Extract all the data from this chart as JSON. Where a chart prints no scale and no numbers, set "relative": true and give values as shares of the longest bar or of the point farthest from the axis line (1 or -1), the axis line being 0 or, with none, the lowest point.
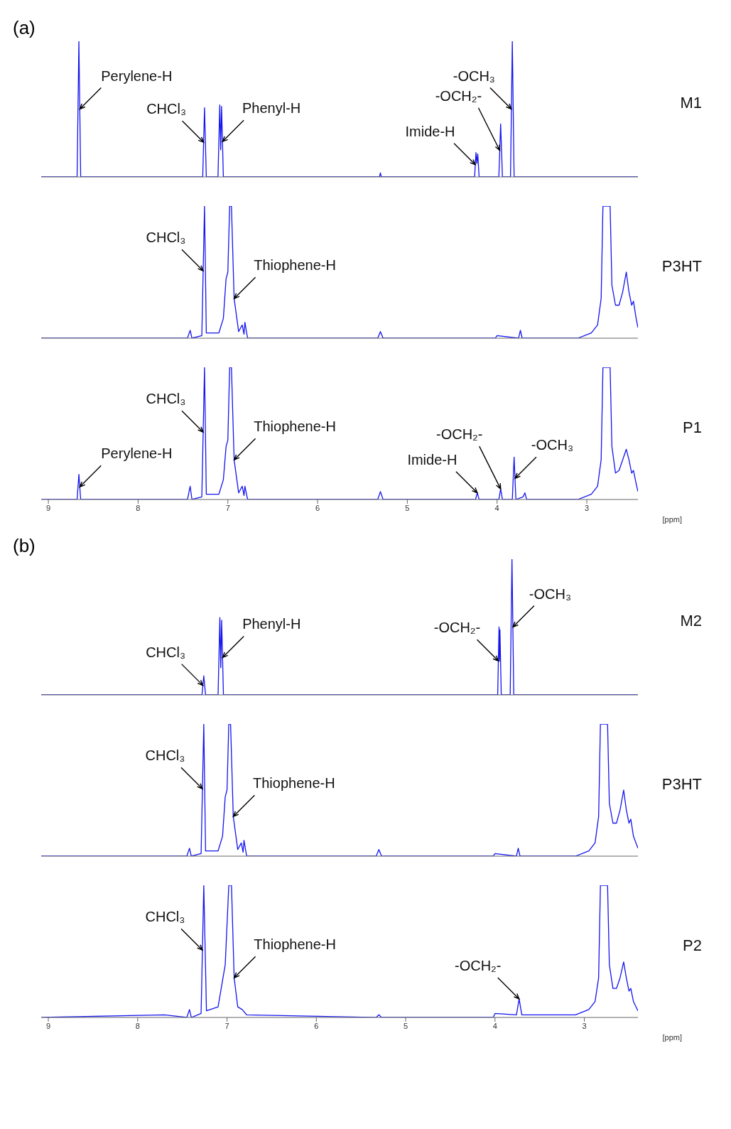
{
  "chart_data": [
    {
      "type": "line",
      "title": "(a)",
      "relative": true,
      "xlim": [
        9.08,
        2.43
      ],
      "xticks": [
        9,
        8,
        7,
        6,
        5,
        4,
        3
      ],
      "tick_labels": false,
      "grid": false,
      "legend": false,
      "marker": "none",
      "line_style": "solid",
      "x": [
        9.08,
        8.68,
        8.66,
        8.64,
        7.28,
        7.26,
        7.24,
        7.11,
        7.09,
        7.08,
        7.07,
        7.05,
        5.31,
        5.3,
        5.29,
        4.25,
        4.235,
        4.225,
        4.215,
        4.2,
        3.98,
        3.96,
        3.94,
        3.85,
        3.83,
        3.81,
        2.43
      ],
      "series": [
        {
          "name": "M1",
          "color": "#1414f0",
          "values": [
            0,
            0,
            1.0,
            0,
            0,
            0.51,
            0,
            0,
            0.53,
            0.2,
            0.52,
            0,
            0,
            0.03,
            0,
            0,
            0.18,
            0.1,
            0.17,
            0,
            0,
            0.39,
            0,
            0,
            1.0,
            0,
            0
          ]
        }
      ],
      "annotations": [
        {
          "text": "Perylene-H",
          "x": 8.65,
          "y": 0.5
        },
        {
          "text": "CHCl₃",
          "x": 7.27,
          "y": 0.255
        },
        {
          "text": "Phenyl-H",
          "x": 7.06,
          "y": 0.26
        },
        {
          "text": "Imide-H",
          "x": 4.2425,
          "y": 0.09
        },
        {
          "text": "-OCH₂-",
          "x": 3.97,
          "y": 0.195
        },
        {
          "text": "-OCH₃",
          "x": 3.84,
          "y": 0.5
        }
      ]
    },
    {
      "type": "line",
      "relative": true,
      "xlim": [
        9.08,
        2.43
      ],
      "xticks": [
        9,
        8,
        7,
        6,
        5,
        4,
        3
      ],
      "tick_labels": false,
      "grid": false,
      "legend": false,
      "marker": "none",
      "line_style": "solid",
      "x": [
        9.08,
        7.45,
        7.42,
        7.4,
        7.29,
        7.26,
        7.24,
        7.1,
        7.05,
        7.02,
        7.0,
        6.98,
        6.96,
        6.93,
        6.88,
        6.84,
        6.82,
        6.81,
        6.78,
        5.33,
        5.3,
        5.27,
        4.02,
        4.0,
        3.76,
        3.74,
        3.72,
        3.1,
        2.95,
        2.88,
        2.84,
        2.82,
        2.79,
        2.77,
        2.74,
        2.72,
        2.68,
        2.64,
        2.6,
        2.56,
        2.53,
        2.5,
        2.48,
        2.45,
        2.43
      ],
      "series": [
        {
          "name": "P3HT",
          "color": "#1414f0",
          "values": [
            0,
            0,
            0.06,
            0,
            0.02,
            1.0,
            0.04,
            0.04,
            0.15,
            0.45,
            0.5,
            1.0,
            1.0,
            0.3,
            0.05,
            0.1,
            0.03,
            0.12,
            0,
            0,
            0.05,
            0,
            0,
            0.02,
            0,
            0.06,
            0,
            0,
            0.04,
            0.1,
            0.3,
            1.0,
            1.0,
            1.0,
            1.0,
            0.4,
            0.25,
            0.25,
            0.35,
            0.5,
            0.35,
            0.25,
            0.28,
            0.15,
            0.08
          ]
        }
      ],
      "annotations": [
        {
          "text": "CHCl₃",
          "x": 7.275,
          "y": 0.51
        },
        {
          "text": "Thiophene-H",
          "x": 6.93,
          "y": 0.3
        }
      ]
    },
    {
      "type": "line",
      "relative": true,
      "xlim": [
        9.08,
        2.43
      ],
      "xticks": [
        9,
        8,
        7,
        6,
        5,
        4,
        3
      ],
      "tick_labels": "x",
      "xlabel": "[ppm]",
      "grid": false,
      "legend": false,
      "marker": "none",
      "line_style": "solid",
      "x": [
        9.08,
        8.68,
        8.66,
        8.64,
        7.45,
        7.42,
        7.4,
        7.29,
        7.26,
        7.24,
        7.1,
        7.05,
        7.02,
        7.0,
        6.98,
        6.96,
        6.93,
        6.88,
        6.84,
        6.82,
        6.81,
        6.78,
        5.33,
        5.3,
        5.27,
        4.24,
        4.22,
        4.2,
        3.98,
        3.96,
        3.94,
        3.83,
        3.81,
        3.79,
        3.71,
        3.69,
        3.67,
        3.1,
        2.95,
        2.88,
        2.84,
        2.82,
        2.79,
        2.77,
        2.74,
        2.72,
        2.68,
        2.64,
        2.6,
        2.56,
        2.53,
        2.5,
        2.48,
        2.45,
        2.43
      ],
      "series": [
        {
          "name": "P1",
          "color": "#1414f0",
          "values": [
            0,
            0,
            0.19,
            0,
            0,
            0.1,
            0,
            0.02,
            1.0,
            0.04,
            0.04,
            0.15,
            0.4,
            0.45,
            1.0,
            1.0,
            0.3,
            0.05,
            0.1,
            0.03,
            0.1,
            0,
            0,
            0.06,
            0,
            0,
            0.05,
            0,
            0,
            0.08,
            0,
            0,
            0.32,
            0,
            0.02,
            0.05,
            0,
            0,
            0.04,
            0.1,
            0.3,
            1.0,
            1.0,
            1.0,
            1.0,
            0.4,
            0.2,
            0.22,
            0.3,
            0.38,
            0.3,
            0.2,
            0.22,
            0.12,
            0.06
          ]
        }
      ],
      "annotations": [
        {
          "text": "Perylene-H",
          "x": 8.65,
          "y": 0.095
        },
        {
          "text": "CHCl₃",
          "x": 7.275,
          "y": 0.51
        },
        {
          "text": "Thiophene-H",
          "x": 6.93,
          "y": 0.3
        },
        {
          "text": "Imide-H",
          "x": 4.22,
          "y": 0.05
        },
        {
          "text": "-OCH₂-",
          "x": 3.96,
          "y": 0.08
        },
        {
          "text": "-OCH₃",
          "x": 3.8,
          "y": 0.16
        }
      ]
    },
    {
      "type": "line",
      "title": "(b)",
      "relative": true,
      "xlim": [
        9.08,
        2.4
      ],
      "xticks": [
        9,
        8,
        7,
        6,
        5,
        4,
        3
      ],
      "tick_labels": false,
      "grid": false,
      "legend": false,
      "marker": "none",
      "line_style": "solid",
      "x": [
        9.08,
        7.28,
        7.26,
        7.24,
        7.1,
        7.08,
        7.07,
        7.06,
        7.04,
        3.97,
        3.955,
        3.95,
        3.945,
        3.93,
        3.83,
        3.81,
        3.79,
        2.4
      ],
      "series": [
        {
          "name": "M2",
          "color": "#1414f0",
          "values": [
            0,
            0,
            0.14,
            0,
            0,
            0.57,
            0.2,
            0.55,
            0,
            0,
            0.5,
            0.25,
            0.48,
            0,
            0,
            1.0,
            0,
            0
          ]
        }
      ],
      "annotations": [
        {
          "text": "CHCl₃",
          "x": 7.27,
          "y": 0.07
        },
        {
          "text": "Phenyl-H",
          "x": 7.05,
          "y": 0.275
        },
        {
          "text": "-OCH₂-",
          "x": 3.9625,
          "y": 0.25
        },
        {
          "text": "-OCH₃",
          "x": 3.8,
          "y": 0.5
        }
      ]
    },
    {
      "type": "line",
      "relative": true,
      "xlim": [
        9.08,
        2.4
      ],
      "xticks": [
        9,
        8,
        7,
        6,
        5,
        4,
        3
      ],
      "tick_labels": false,
      "grid": false,
      "legend": false,
      "marker": "none",
      "line_style": "solid",
      "x": [
        9.08,
        7.45,
        7.42,
        7.4,
        7.29,
        7.26,
        7.24,
        7.1,
        7.05,
        7.02,
        7.0,
        6.98,
        6.96,
        6.93,
        6.88,
        6.84,
        6.82,
        6.81,
        6.78,
        5.33,
        5.3,
        5.27,
        4.02,
        4.0,
        3.76,
        3.74,
        3.72,
        3.1,
        2.95,
        2.88,
        2.84,
        2.82,
        2.79,
        2.77,
        2.74,
        2.72,
        2.68,
        2.64,
        2.6,
        2.56,
        2.53,
        2.5,
        2.48,
        2.45,
        2.4
      ],
      "series": [
        {
          "name": "P3HT",
          "color": "#1414f0",
          "values": [
            0,
            0,
            0.06,
            0,
            0.02,
            1.0,
            0.04,
            0.04,
            0.15,
            0.45,
            0.5,
            1.0,
            1.0,
            0.3,
            0.05,
            0.1,
            0.03,
            0.12,
            0,
            0,
            0.05,
            0,
            0,
            0.02,
            0,
            0.06,
            0,
            0,
            0.04,
            0.1,
            0.3,
            1.0,
            1.0,
            1.0,
            1.0,
            0.4,
            0.25,
            0.25,
            0.35,
            0.5,
            0.35,
            0.25,
            0.28,
            0.15,
            0.06
          ]
        }
      ],
      "annotations": [
        {
          "text": "CHCl₃",
          "x": 7.275,
          "y": 0.51
        },
        {
          "text": "Thiophene-H",
          "x": 6.93,
          "y": 0.3
        }
      ]
    },
    {
      "type": "line",
      "relative": true,
      "xlim": [
        9.08,
        2.4
      ],
      "xticks": [
        9,
        8,
        7,
        6,
        5,
        4,
        3
      ],
      "tick_labels": "x",
      "xlabel": "[ppm]",
      "grid": false,
      "legend": false,
      "marker": "none",
      "line_style": "solid",
      "x": [
        9.08,
        7.7,
        7.45,
        7.42,
        7.4,
        7.29,
        7.26,
        7.23,
        7.1,
        7.02,
        6.98,
        6.95,
        6.92,
        6.88,
        6.83,
        6.78,
        5.33,
        5.3,
        5.27,
        4.02,
        4.0,
        3.76,
        3.73,
        3.7,
        3.1,
        2.95,
        2.88,
        2.84,
        2.82,
        2.79,
        2.77,
        2.74,
        2.72,
        2.68,
        2.64,
        2.6,
        2.56,
        2.53,
        2.5,
        2.48,
        2.45,
        2.4
      ],
      "series": [
        {
          "name": "P2",
          "color": "#1414f0",
          "values": [
            0,
            0.02,
            0,
            0.06,
            0,
            0.03,
            1.0,
            0.05,
            0.08,
            0.4,
            1.0,
            1.0,
            0.3,
            0.08,
            0.06,
            0.02,
            0,
            0.02,
            0,
            0,
            0.03,
            0.02,
            0.14,
            0.02,
            0.02,
            0.06,
            0.12,
            0.3,
            1.0,
            1.0,
            1.0,
            1.0,
            0.4,
            0.22,
            0.22,
            0.3,
            0.42,
            0.3,
            0.2,
            0.22,
            0.12,
            0.05
          ]
        }
      ],
      "annotations": [
        {
          "text": "CHCl₃",
          "x": 7.275,
          "y": 0.51
        },
        {
          "text": "Thiophene-H",
          "x": 6.92,
          "y": 0.3
        },
        {
          "text": "-OCH₂-",
          "x": 3.73,
          "y": 0.14
        }
      ]
    }
  ]
}
